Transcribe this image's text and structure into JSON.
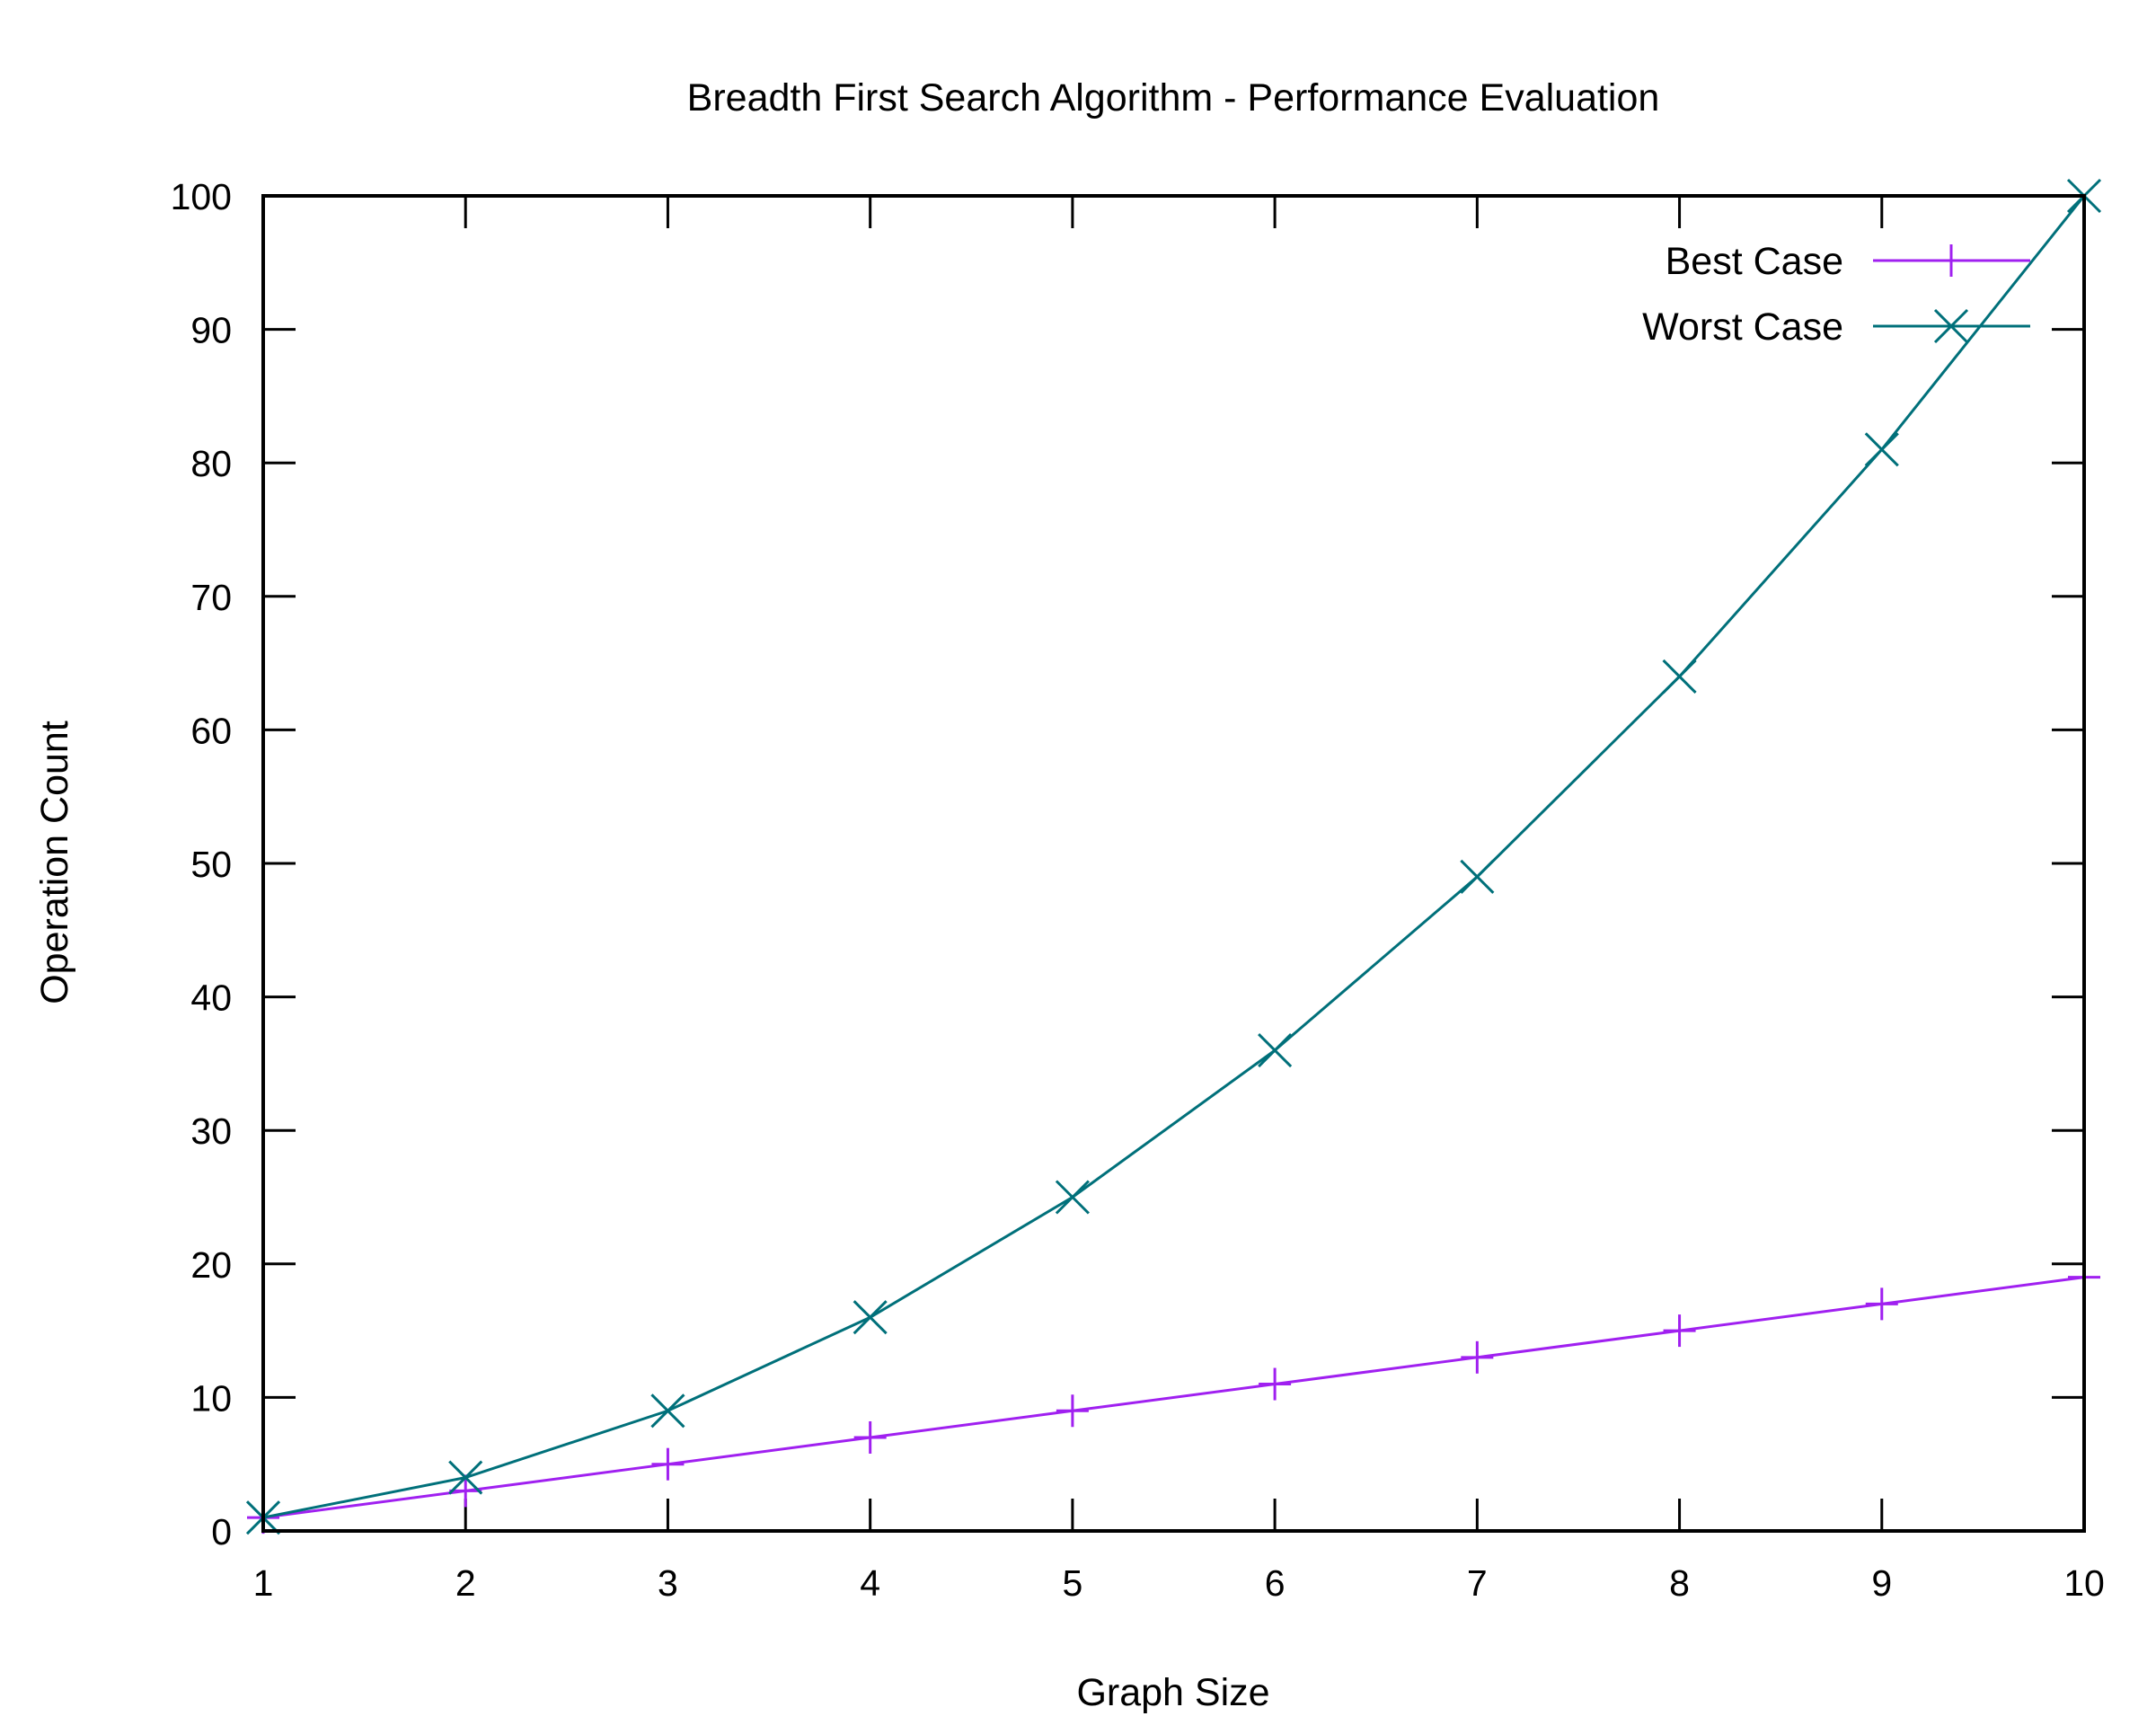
{
  "chart_data": {
    "type": "line",
    "title": "Breadth First Search Algorithm - Performance Evaluation",
    "xlabel": "Graph Size",
    "ylabel": "Operation Count",
    "xlim": [
      1,
      10
    ],
    "ylim": [
      0,
      100
    ],
    "xticks": [
      "1",
      "2",
      "3",
      "4",
      "5",
      "6",
      "7",
      "8",
      "9",
      "10"
    ],
    "yticks": [
      "0",
      "10",
      "20",
      "30",
      "40",
      "50",
      "60",
      "70",
      "80",
      "90",
      "100"
    ],
    "grid": false,
    "legend": "top-right",
    "x": [
      1,
      2,
      3,
      4,
      5,
      6,
      7,
      8,
      9,
      10
    ],
    "series": [
      {
        "name": "Best Case",
        "values": [
          1,
          3,
          5,
          7,
          9,
          11,
          13,
          15,
          17,
          19
        ],
        "color": "#a020f0",
        "marker": "plus"
      },
      {
        "name": "Worst Case",
        "values": [
          1,
          4,
          9,
          16,
          25,
          36,
          49,
          64,
          81,
          100
        ],
        "color": "#00707a",
        "marker": "cross"
      }
    ]
  }
}
